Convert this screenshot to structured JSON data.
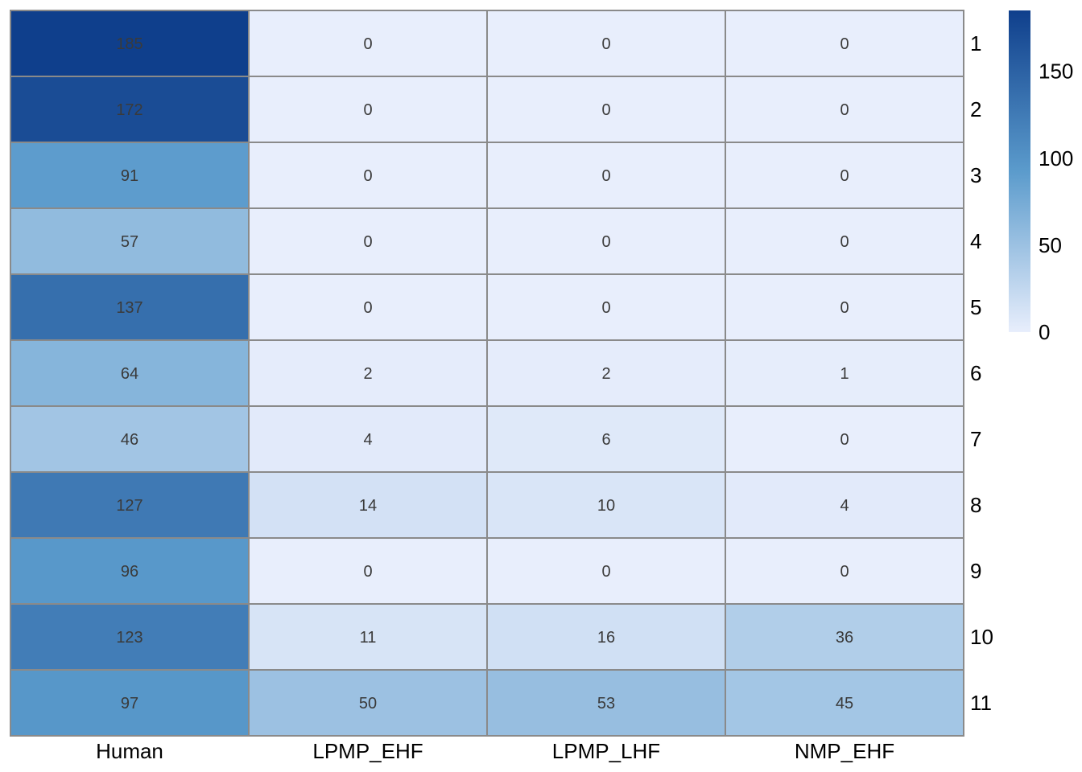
{
  "chart_data": {
    "type": "heatmap",
    "rows": [
      "1",
      "2",
      "3",
      "4",
      "5",
      "6",
      "7",
      "8",
      "9",
      "10",
      "11"
    ],
    "columns": [
      "Human",
      "LPMP_EHF",
      "LPMP_LHF",
      "NMP_EHF"
    ],
    "values": [
      [
        185,
        0,
        0,
        0
      ],
      [
        172,
        0,
        0,
        0
      ],
      [
        91,
        0,
        0,
        0
      ],
      [
        57,
        0,
        0,
        0
      ],
      [
        137,
        0,
        0,
        0
      ],
      [
        64,
        2,
        2,
        1
      ],
      [
        46,
        4,
        6,
        0
      ],
      [
        127,
        14,
        10,
        4
      ],
      [
        96,
        0,
        0,
        0
      ],
      [
        123,
        11,
        16,
        36
      ],
      [
        97,
        50,
        53,
        45
      ]
    ],
    "value_range": [
      0,
      185
    ],
    "legend": {
      "ticks": [
        0,
        50,
        100,
        150
      ],
      "placement": "top-right",
      "colors": [
        "#e8eefc",
        "#5b9bcc",
        "#0f3f8c"
      ]
    },
    "grid": true,
    "grid_color": "#8a8a8a",
    "show_values": true
  }
}
